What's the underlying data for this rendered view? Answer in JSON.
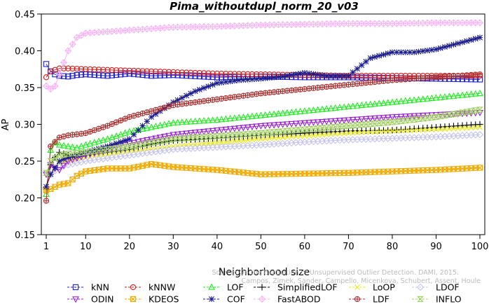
{
  "chart_data": {
    "type": "line",
    "title": "Pima_withoutdupl_norm_20_v03",
    "xlabel": "Neighborhood size",
    "ylabel": "AP",
    "xlim": [
      1,
      100
    ],
    "ylim": [
      0.15,
      0.45
    ],
    "xticks": [
      1,
      10,
      20,
      30,
      40,
      50,
      60,
      70,
      80,
      90,
      100
    ],
    "yticks": [
      0.15,
      0.2,
      0.25,
      0.3,
      0.35,
      0.4,
      0.45
    ],
    "grid": false,
    "legend_position": "bottom",
    "watermark": {
      "line1": "Source: On the Evaluation of Unsupervised Outlier Detection. DAMI, 2015.",
      "line2": "Campos, Zimek, Sander, Campello, Micenkova, Schubert, Assent, Houle"
    },
    "series": [
      {
        "name": "kNN",
        "color": "#1f1fd4",
        "marker": "square",
        "points": [
          [
            1,
            0.382
          ],
          [
            2,
            0.372
          ],
          [
            3,
            0.368
          ],
          [
            4,
            0.366
          ],
          [
            6,
            0.365
          ],
          [
            8,
            0.367
          ],
          [
            10,
            0.368
          ],
          [
            15,
            0.366
          ],
          [
            20,
            0.369
          ],
          [
            25,
            0.366
          ],
          [
            30,
            0.367
          ],
          [
            40,
            0.364
          ],
          [
            50,
            0.365
          ],
          [
            60,
            0.364
          ],
          [
            70,
            0.364
          ],
          [
            80,
            0.363
          ],
          [
            90,
            0.362
          ],
          [
            100,
            0.361
          ]
        ]
      },
      {
        "name": "kNNW",
        "color": "#d41f1f",
        "marker": "circle",
        "points": [
          [
            1,
            0.364
          ],
          [
            2,
            0.372
          ],
          [
            4,
            0.376
          ],
          [
            6,
            0.376
          ],
          [
            10,
            0.375
          ],
          [
            15,
            0.374
          ],
          [
            20,
            0.373
          ],
          [
            30,
            0.371
          ],
          [
            40,
            0.369
          ],
          [
            50,
            0.368
          ],
          [
            60,
            0.367
          ],
          [
            70,
            0.366
          ],
          [
            80,
            0.366
          ],
          [
            90,
            0.366
          ],
          [
            100,
            0.366
          ]
        ]
      },
      {
        "name": "LOF",
        "color": "#22ee22",
        "marker": "triangle-up",
        "points": [
          [
            1,
            0.205
          ],
          [
            2,
            0.265
          ],
          [
            3,
            0.275
          ],
          [
            4,
            0.272
          ],
          [
            6,
            0.27
          ],
          [
            8,
            0.268
          ],
          [
            10,
            0.272
          ],
          [
            15,
            0.28
          ],
          [
            20,
            0.29
          ],
          [
            25,
            0.296
          ],
          [
            30,
            0.302
          ],
          [
            40,
            0.306
          ],
          [
            50,
            0.312
          ],
          [
            60,
            0.318
          ],
          [
            70,
            0.324
          ],
          [
            80,
            0.33
          ],
          [
            90,
            0.336
          ],
          [
            100,
            0.342
          ]
        ]
      },
      {
        "name": "SimplifiedLOF",
        "color": "#000000",
        "marker": "plus",
        "points": [
          [
            1,
            0.214
          ],
          [
            2,
            0.245
          ],
          [
            3,
            0.255
          ],
          [
            4,
            0.262
          ],
          [
            6,
            0.258
          ],
          [
            8,
            0.255
          ],
          [
            10,
            0.258
          ],
          [
            15,
            0.262
          ],
          [
            20,
            0.266
          ],
          [
            25,
            0.273
          ],
          [
            30,
            0.278
          ],
          [
            40,
            0.281
          ],
          [
            50,
            0.285
          ],
          [
            60,
            0.288
          ],
          [
            70,
            0.291
          ],
          [
            80,
            0.292
          ],
          [
            90,
            0.296
          ],
          [
            100,
            0.3
          ]
        ]
      },
      {
        "name": "LoOP",
        "color": "#e8e822",
        "marker": "x",
        "points": [
          [
            1,
            0.212
          ],
          [
            2,
            0.235
          ],
          [
            4,
            0.248
          ],
          [
            6,
            0.252
          ],
          [
            10,
            0.255
          ],
          [
            15,
            0.258
          ],
          [
            20,
            0.262
          ],
          [
            25,
            0.266
          ],
          [
            30,
            0.27
          ],
          [
            40,
            0.275
          ],
          [
            50,
            0.28
          ],
          [
            60,
            0.284
          ],
          [
            70,
            0.288
          ],
          [
            80,
            0.291
          ],
          [
            90,
            0.293
          ],
          [
            100,
            0.296
          ]
        ]
      },
      {
        "name": "LDOF",
        "color": "#c4c4ee",
        "marker": "diamond",
        "points": [
          [
            1,
            0.212
          ],
          [
            2,
            0.232
          ],
          [
            4,
            0.242
          ],
          [
            6,
            0.245
          ],
          [
            10,
            0.25
          ],
          [
            15,
            0.254
          ],
          [
            20,
            0.258
          ],
          [
            25,
            0.262
          ],
          [
            30,
            0.266
          ],
          [
            40,
            0.269
          ],
          [
            50,
            0.272
          ],
          [
            60,
            0.276
          ],
          [
            70,
            0.279
          ],
          [
            80,
            0.281
          ],
          [
            90,
            0.283
          ],
          [
            100,
            0.286
          ]
        ]
      },
      {
        "name": "ODIN",
        "color": "#9a22d4",
        "marker": "triangle-down",
        "points": [
          [
            1,
            0.232
          ],
          [
            2,
            0.245
          ],
          [
            3,
            0.24
          ],
          [
            4,
            0.238
          ],
          [
            6,
            0.25
          ],
          [
            10,
            0.258
          ],
          [
            15,
            0.266
          ],
          [
            20,
            0.274
          ],
          [
            25,
            0.28
          ],
          [
            30,
            0.286
          ],
          [
            40,
            0.292
          ],
          [
            50,
            0.298
          ],
          [
            60,
            0.302
          ],
          [
            70,
            0.306
          ],
          [
            80,
            0.31
          ],
          [
            90,
            0.313
          ],
          [
            100,
            0.316
          ]
        ]
      },
      {
        "name": "KDEOS",
        "color": "#eeaa00",
        "marker": "square-x",
        "points": [
          [
            1,
            0.21
          ],
          [
            2,
            0.212
          ],
          [
            4,
            0.218
          ],
          [
            6,
            0.22
          ],
          [
            8,
            0.23
          ],
          [
            10,
            0.236
          ],
          [
            15,
            0.24
          ],
          [
            20,
            0.24
          ],
          [
            25,
            0.246
          ],
          [
            30,
            0.242
          ],
          [
            40,
            0.238
          ],
          [
            50,
            0.232
          ],
          [
            60,
            0.233
          ],
          [
            70,
            0.234
          ],
          [
            80,
            0.236
          ],
          [
            90,
            0.238
          ],
          [
            100,
            0.241
          ]
        ]
      },
      {
        "name": "COF",
        "color": "#1a1a8a",
        "marker": "asterisk",
        "points": [
          [
            1,
            0.215
          ],
          [
            2,
            0.232
          ],
          [
            4,
            0.25
          ],
          [
            6,
            0.255
          ],
          [
            10,
            0.262
          ],
          [
            15,
            0.27
          ],
          [
            20,
            0.28
          ],
          [
            25,
            0.31
          ],
          [
            30,
            0.33
          ],
          [
            35,
            0.345
          ],
          [
            40,
            0.356
          ],
          [
            45,
            0.36
          ],
          [
            50,
            0.362
          ],
          [
            55,
            0.365
          ],
          [
            60,
            0.37
          ],
          [
            65,
            0.366
          ],
          [
            70,
            0.366
          ],
          [
            75,
            0.39
          ],
          [
            80,
            0.398
          ],
          [
            85,
            0.398
          ],
          [
            90,
            0.402
          ],
          [
            95,
            0.41
          ],
          [
            100,
            0.418
          ]
        ]
      },
      {
        "name": "FastABOD",
        "color": "#f4b8f4",
        "marker": "diamond-plus",
        "points": [
          [
            1,
            0.352
          ],
          [
            2,
            0.348
          ],
          [
            3,
            0.352
          ],
          [
            4,
            0.368
          ],
          [
            6,
            0.4
          ],
          [
            8,
            0.418
          ],
          [
            10,
            0.424
          ],
          [
            15,
            0.426
          ],
          [
            20,
            0.428
          ],
          [
            25,
            0.43
          ],
          [
            30,
            0.432
          ],
          [
            40,
            0.433
          ],
          [
            50,
            0.435
          ],
          [
            60,
            0.436
          ],
          [
            70,
            0.437
          ],
          [
            80,
            0.437
          ],
          [
            90,
            0.438
          ],
          [
            100,
            0.438
          ]
        ]
      },
      {
        "name": "LDF",
        "color": "#aa3333",
        "marker": "circle-plus",
        "points": [
          [
            1,
            0.196
          ],
          [
            2,
            0.27
          ],
          [
            4,
            0.282
          ],
          [
            6,
            0.285
          ],
          [
            10,
            0.288
          ],
          [
            15,
            0.298
          ],
          [
            20,
            0.31
          ],
          [
            25,
            0.318
          ],
          [
            30,
            0.326
          ],
          [
            40,
            0.334
          ],
          [
            50,
            0.342
          ],
          [
            60,
            0.348
          ],
          [
            70,
            0.354
          ],
          [
            80,
            0.36
          ],
          [
            90,
            0.364
          ],
          [
            100,
            0.368
          ]
        ]
      },
      {
        "name": "INFLO",
        "color": "#a0d060",
        "marker": "hourglass",
        "points": [
          [
            1,
            0.234
          ],
          [
            2,
            0.25
          ],
          [
            4,
            0.258
          ],
          [
            6,
            0.26
          ],
          [
            10,
            0.262
          ],
          [
            15,
            0.266
          ],
          [
            20,
            0.27
          ],
          [
            25,
            0.275
          ],
          [
            30,
            0.28
          ],
          [
            40,
            0.284
          ],
          [
            50,
            0.288
          ],
          [
            60,
            0.293
          ],
          [
            70,
            0.298
          ],
          [
            80,
            0.303
          ],
          [
            90,
            0.31
          ],
          [
            100,
            0.32
          ]
        ]
      }
    ],
    "legend_rows": [
      [
        "kNN",
        "kNNW",
        "LOF",
        "SimplifiedLOF",
        "LoOP",
        "LDOF"
      ],
      [
        "ODIN",
        "KDEOS",
        "COF",
        "FastABOD",
        "LDF",
        "INFLO"
      ]
    ]
  }
}
